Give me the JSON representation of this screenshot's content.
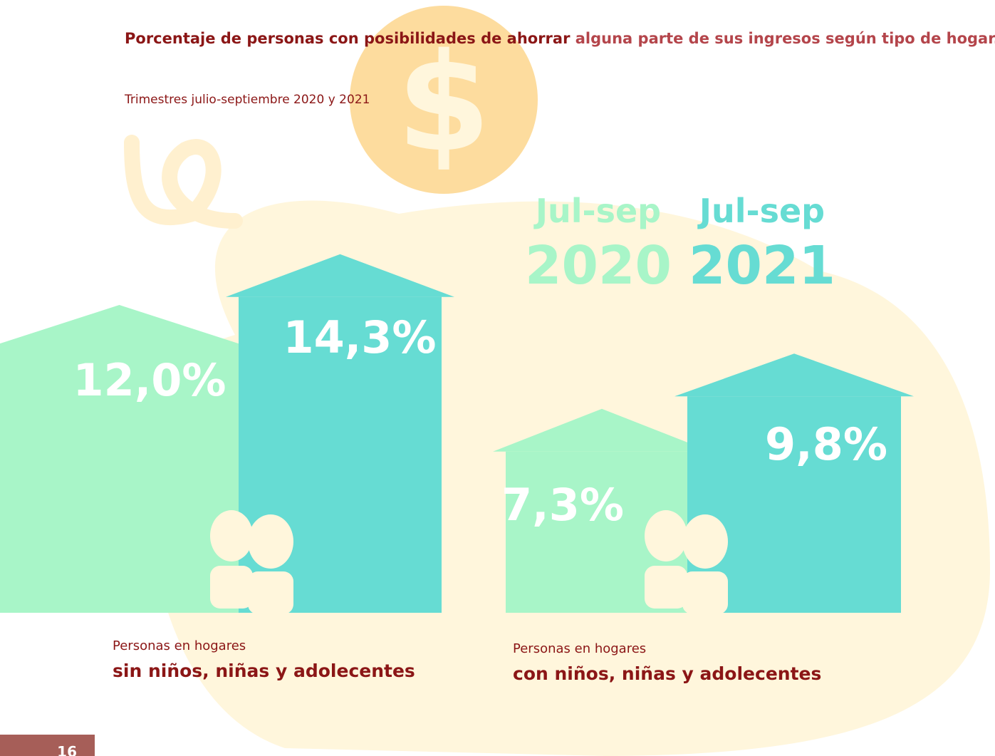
{
  "title_bold": "Porcentaje de personas con posibilidades de ahorrar",
  "title_rest": "alguna parte de sus ingresos según tipo de hogar.",
  "subtitle": "Trimestres julio-septiembre 2020 y 2021",
  "page_number": "16",
  "chart_data": {
    "type": "bar",
    "category_intro": [
      "Personas en hogares",
      "Personas en hogares"
    ],
    "categories": [
      "sin niños, niñas y adolecentes",
      "con niños, niñas y adolecentes"
    ],
    "series": [
      {
        "period": "Jul-sep",
        "name": "2020",
        "color": "#a8f5c8",
        "values": [
          12.0,
          7.3
        ],
        "value_labels": [
          "12,0%",
          "7,3%"
        ]
      },
      {
        "period": "Jul-sep",
        "name": "2021",
        "color": "#66dcd3",
        "values": [
          14.3,
          9.8
        ],
        "value_labels": [
          "14,3%",
          "9,8%"
        ]
      }
    ]
  }
}
